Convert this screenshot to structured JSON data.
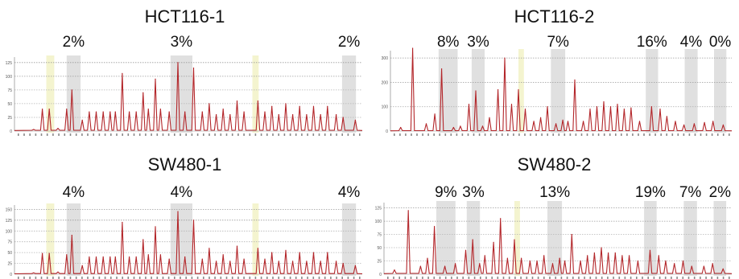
{
  "chart_data": [
    {
      "type": "line",
      "title": "HCT116-1",
      "y_ticks": [
        "0",
        "25",
        "50",
        "75",
        "100",
        "125"
      ],
      "ylim": [
        0,
        135
      ],
      "highlights": [
        {
          "label": "",
          "center": 0.103,
          "width": 0.023,
          "color": "#f4f4cf"
        },
        {
          "label": "2%",
          "center": 0.17,
          "width": 0.04,
          "color": "#e0e0e0"
        },
        {
          "label": "3%",
          "center": 0.48,
          "width": 0.063,
          "color": "#e0e0e0"
        },
        {
          "label": "",
          "center": 0.693,
          "width": 0.018,
          "color": "#f4f4cf"
        },
        {
          "label": "2%",
          "center": 0.962,
          "width": 0.04,
          "color": "#e0e0e0"
        }
      ],
      "peaks": [
        [
          0.055,
          3
        ],
        [
          0.08,
          40
        ],
        [
          0.1,
          40
        ],
        [
          0.125,
          5
        ],
        [
          0.15,
          40
        ],
        [
          0.165,
          75
        ],
        [
          0.195,
          20
        ],
        [
          0.215,
          35
        ],
        [
          0.235,
          35
        ],
        [
          0.255,
          35
        ],
        [
          0.275,
          35
        ],
        [
          0.29,
          35
        ],
        [
          0.31,
          105
        ],
        [
          0.33,
          35
        ],
        [
          0.35,
          35
        ],
        [
          0.37,
          70
        ],
        [
          0.385,
          40
        ],
        [
          0.405,
          95
        ],
        [
          0.42,
          40
        ],
        [
          0.445,
          35
        ],
        [
          0.47,
          125
        ],
        [
          0.49,
          35
        ],
        [
          0.515,
          115
        ],
        [
          0.54,
          35
        ],
        [
          0.56,
          50
        ],
        [
          0.58,
          30
        ],
        [
          0.6,
          40
        ],
        [
          0.62,
          30
        ],
        [
          0.64,
          55
        ],
        [
          0.66,
          35
        ],
        [
          0.7,
          55
        ],
        [
          0.72,
          35
        ],
        [
          0.74,
          45
        ],
        [
          0.76,
          30
        ],
        [
          0.78,
          50
        ],
        [
          0.8,
          30
        ],
        [
          0.82,
          45
        ],
        [
          0.84,
          30
        ],
        [
          0.86,
          45
        ],
        [
          0.88,
          30
        ],
        [
          0.9,
          45
        ],
        [
          0.925,
          30
        ],
        [
          0.945,
          25
        ],
        [
          0.98,
          20
        ]
      ]
    },
    {
      "type": "line",
      "title": "HCT116-2",
      "y_ticks": [
        "0",
        "100",
        "200",
        "300"
      ],
      "ylim": [
        0,
        330
      ],
      "highlights": [
        {
          "label": "8%",
          "center": 0.169,
          "width": 0.056,
          "color": "#e0e0e0"
        },
        {
          "label": "3%",
          "center": 0.257,
          "width": 0.038,
          "color": "#e0e0e0"
        },
        {
          "label": "",
          "center": 0.383,
          "width": 0.016,
          "color": "#f4f4cf"
        },
        {
          "label": "7%",
          "center": 0.491,
          "width": 0.042,
          "color": "#e0e0e0"
        },
        {
          "label": "16%",
          "center": 0.766,
          "width": 0.036,
          "color": "#e0e0e0"
        },
        {
          "label": "4%",
          "center": 0.881,
          "width": 0.038,
          "color": "#e0e0e0"
        },
        {
          "label": "0%",
          "center": 0.966,
          "width": 0.036,
          "color": "#e0e0e0"
        }
      ],
      "peaks": [
        [
          0.03,
          15
        ],
        [
          0.065,
          340
        ],
        [
          0.105,
          30
        ],
        [
          0.13,
          70
        ],
        [
          0.15,
          255
        ],
        [
          0.185,
          15
        ],
        [
          0.205,
          20
        ],
        [
          0.23,
          110
        ],
        [
          0.25,
          165
        ],
        [
          0.27,
          20
        ],
        [
          0.29,
          55
        ],
        [
          0.315,
          170
        ],
        [
          0.335,
          300
        ],
        [
          0.355,
          110
        ],
        [
          0.375,
          170
        ],
        [
          0.395,
          90
        ],
        [
          0.42,
          40
        ],
        [
          0.44,
          55
        ],
        [
          0.46,
          100
        ],
        [
          0.485,
          30
        ],
        [
          0.505,
          45
        ],
        [
          0.52,
          40
        ],
        [
          0.54,
          210
        ],
        [
          0.565,
          40
        ],
        [
          0.585,
          90
        ],
        [
          0.605,
          100
        ],
        [
          0.625,
          120
        ],
        [
          0.645,
          100
        ],
        [
          0.665,
          110
        ],
        [
          0.685,
          90
        ],
        [
          0.705,
          95
        ],
        [
          0.73,
          40
        ],
        [
          0.765,
          100
        ],
        [
          0.79,
          90
        ],
        [
          0.81,
          60
        ],
        [
          0.835,
          40
        ],
        [
          0.86,
          25
        ],
        [
          0.89,
          30
        ],
        [
          0.92,
          35
        ],
        [
          0.945,
          40
        ],
        [
          0.975,
          25
        ]
      ]
    },
    {
      "type": "line",
      "title": "SW480-1",
      "y_ticks": [
        "0",
        "25",
        "50",
        "75",
        "100",
        "125",
        "150"
      ],
      "ylim": [
        0,
        160
      ],
      "highlights": [
        {
          "label": "",
          "center": 0.103,
          "width": 0.023,
          "color": "#f4f4cf"
        },
        {
          "label": "4%",
          "center": 0.17,
          "width": 0.04,
          "color": "#e0e0e0"
        },
        {
          "label": "4%",
          "center": 0.48,
          "width": 0.063,
          "color": "#e0e0e0"
        },
        {
          "label": "",
          "center": 0.693,
          "width": 0.018,
          "color": "#f4f4cf"
        },
        {
          "label": "4%",
          "center": 0.962,
          "width": 0.04,
          "color": "#e0e0e0"
        }
      ],
      "peaks": [
        [
          0.055,
          3
        ],
        [
          0.08,
          48
        ],
        [
          0.1,
          48
        ],
        [
          0.125,
          5
        ],
        [
          0.15,
          45
        ],
        [
          0.165,
          90
        ],
        [
          0.195,
          20
        ],
        [
          0.215,
          40
        ],
        [
          0.235,
          40
        ],
        [
          0.255,
          40
        ],
        [
          0.275,
          40
        ],
        [
          0.29,
          40
        ],
        [
          0.31,
          120
        ],
        [
          0.33,
          40
        ],
        [
          0.35,
          40
        ],
        [
          0.37,
          80
        ],
        [
          0.385,
          45
        ],
        [
          0.405,
          110
        ],
        [
          0.42,
          45
        ],
        [
          0.445,
          35
        ],
        [
          0.47,
          145
        ],
        [
          0.49,
          40
        ],
        [
          0.515,
          125
        ],
        [
          0.54,
          35
        ],
        [
          0.56,
          60
        ],
        [
          0.58,
          30
        ],
        [
          0.6,
          45
        ],
        [
          0.62,
          30
        ],
        [
          0.64,
          65
        ],
        [
          0.66,
          35
        ],
        [
          0.7,
          60
        ],
        [
          0.72,
          35
        ],
        [
          0.74,
          50
        ],
        [
          0.76,
          30
        ],
        [
          0.78,
          55
        ],
        [
          0.8,
          30
        ],
        [
          0.82,
          50
        ],
        [
          0.84,
          30
        ],
        [
          0.86,
          50
        ],
        [
          0.88,
          30
        ],
        [
          0.9,
          50
        ],
        [
          0.925,
          30
        ],
        [
          0.945,
          25
        ],
        [
          0.98,
          20
        ]
      ]
    },
    {
      "type": "line",
      "title": "SW480-2",
      "y_ticks": [
        "0",
        "25",
        "50",
        "75",
        "100",
        "125"
      ],
      "ylim": [
        0,
        135
      ],
      "highlights": [
        {
          "label": "9%",
          "center": 0.178,
          "width": 0.055,
          "color": "#e0e0e0"
        },
        {
          "label": "3%",
          "center": 0.257,
          "width": 0.038,
          "color": "#e0e0e0"
        },
        {
          "label": "",
          "center": 0.383,
          "width": 0.016,
          "color": "#f4f4cf"
        },
        {
          "label": "13%",
          "center": 0.491,
          "width": 0.042,
          "color": "#e0e0e0"
        },
        {
          "label": "19%",
          "center": 0.766,
          "width": 0.036,
          "color": "#e0e0e0"
        },
        {
          "label": "7%",
          "center": 0.881,
          "width": 0.038,
          "color": "#e0e0e0"
        },
        {
          "label": "2%",
          "center": 0.966,
          "width": 0.036,
          "color": "#e0e0e0"
        }
      ],
      "peaks": [
        [
          0.03,
          8
        ],
        [
          0.07,
          120
        ],
        [
          0.105,
          15
        ],
        [
          0.125,
          30
        ],
        [
          0.145,
          90
        ],
        [
          0.175,
          15
        ],
        [
          0.205,
          20
        ],
        [
          0.235,
          45
        ],
        [
          0.255,
          65
        ],
        [
          0.275,
          20
        ],
        [
          0.29,
          35
        ],
        [
          0.315,
          60
        ],
        [
          0.335,
          105
        ],
        [
          0.355,
          30
        ],
        [
          0.375,
          65
        ],
        [
          0.395,
          30
        ],
        [
          0.42,
          25
        ],
        [
          0.44,
          25
        ],
        [
          0.46,
          35
        ],
        [
          0.485,
          20
        ],
        [
          0.505,
          30
        ],
        [
          0.52,
          25
        ],
        [
          0.54,
          75
        ],
        [
          0.565,
          25
        ],
        [
          0.585,
          35
        ],
        [
          0.605,
          40
        ],
        [
          0.625,
          50
        ],
        [
          0.645,
          40
        ],
        [
          0.665,
          40
        ],
        [
          0.685,
          35
        ],
        [
          0.705,
          35
        ],
        [
          0.73,
          25
        ],
        [
          0.765,
          45
        ],
        [
          0.79,
          35
        ],
        [
          0.81,
          25
        ],
        [
          0.835,
          20
        ],
        [
          0.86,
          25
        ],
        [
          0.885,
          15
        ],
        [
          0.92,
          15
        ],
        [
          0.945,
          20
        ],
        [
          0.975,
          10
        ]
      ]
    }
  ]
}
